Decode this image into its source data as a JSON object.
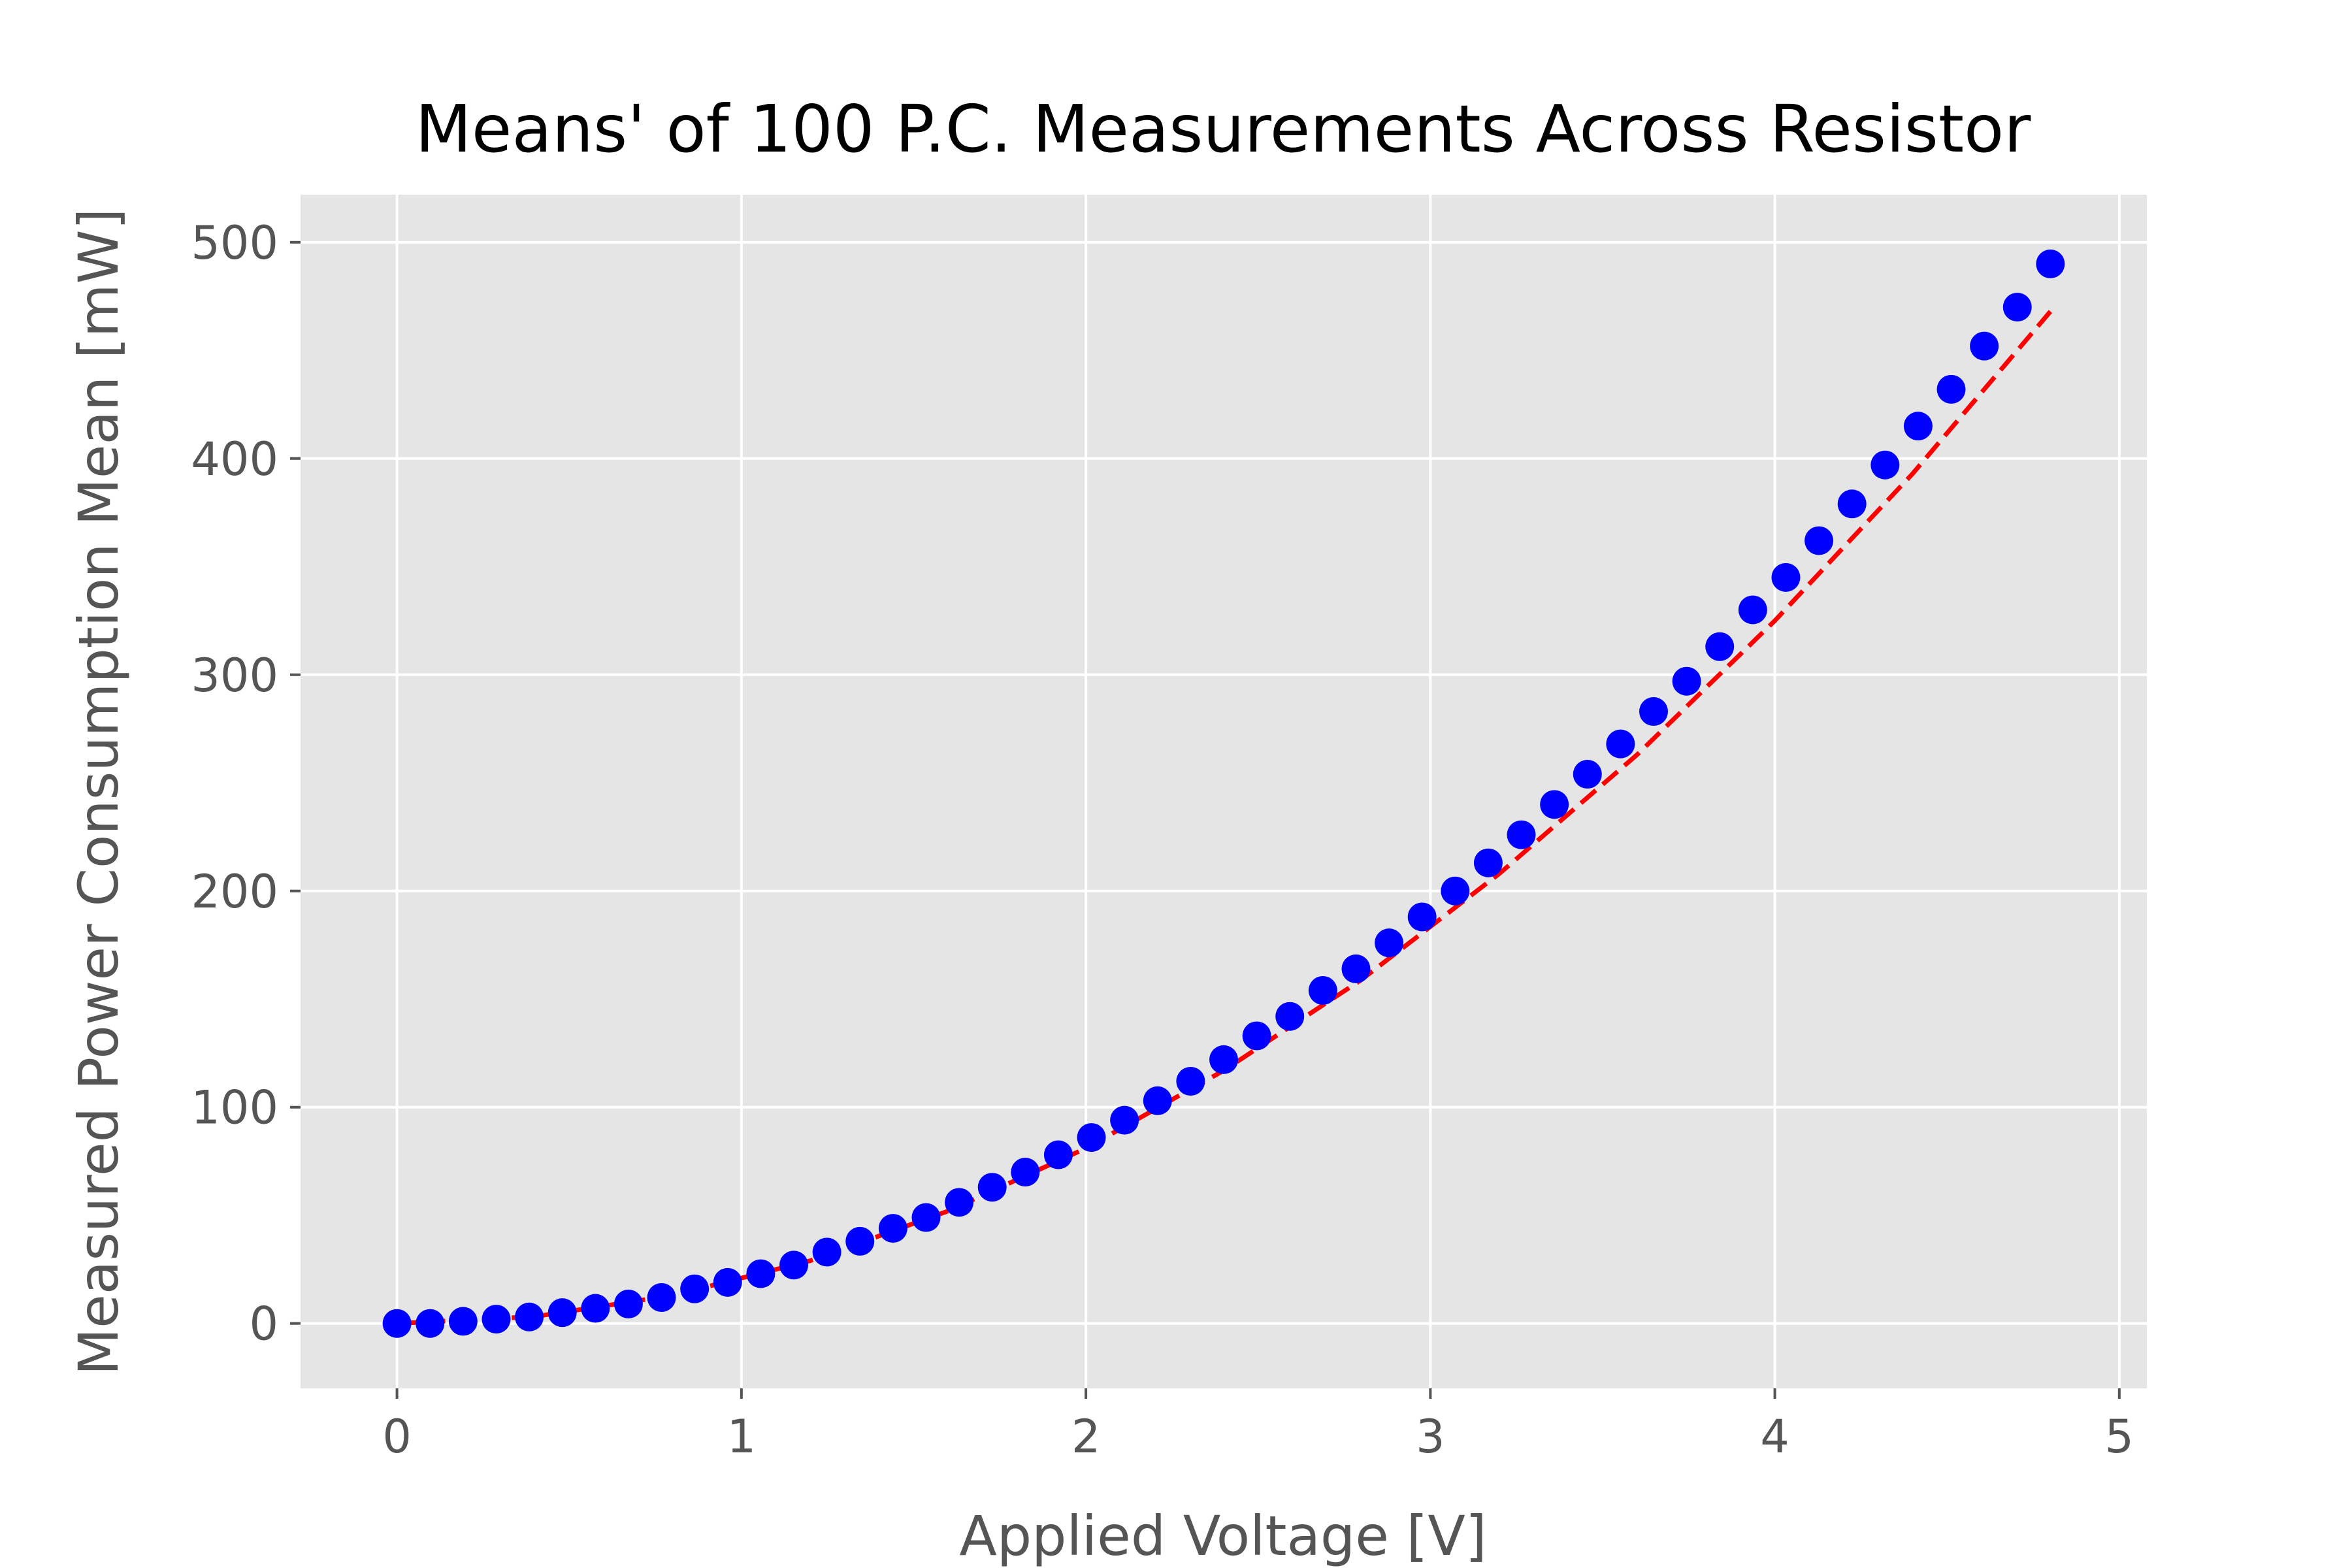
{
  "chart_data": {
    "type": "scatter",
    "title": "Means' of 100 P.C. Measurements Across Resistor",
    "xlabel": "Applied Voltage [V]",
    "ylabel": "Measured Power Consumption Mean [mW]",
    "xlim": [
      -0.28,
      5.08
    ],
    "ylim": [
      -30,
      522
    ],
    "xticks": [
      0,
      1,
      2,
      3,
      4,
      5
    ],
    "yticks": [
      0,
      100,
      200,
      300,
      400,
      500
    ],
    "grid": true,
    "legend": "none",
    "colors": {
      "background": "#e5e5e5",
      "points": "#0000ff",
      "fit": "#ff0000"
    },
    "series": [
      {
        "style": "points",
        "x": [
          0.0,
          0.096,
          0.192,
          0.288,
          0.384,
          0.48,
          0.576,
          0.672,
          0.768,
          0.864,
          0.96,
          1.056,
          1.152,
          1.248,
          1.344,
          1.44,
          1.536,
          1.632,
          1.728,
          1.824,
          1.92,
          2.016,
          2.112,
          2.208,
          2.304,
          2.4,
          2.496,
          2.592,
          2.688,
          2.784,
          2.88,
          2.976,
          3.072,
          3.168,
          3.264,
          3.36,
          3.456,
          3.552,
          3.648,
          3.744,
          3.84,
          3.936,
          4.032,
          4.128,
          4.224,
          4.32,
          4.416,
          4.512,
          4.608,
          4.704,
          4.8
        ],
        "y": [
          0,
          0,
          1,
          2,
          3,
          5,
          7,
          9,
          12,
          16,
          19,
          23,
          27,
          33,
          38,
          44,
          49,
          56,
          63,
          70,
          78,
          86,
          94,
          103,
          112,
          122,
          133,
          142,
          154,
          164,
          176,
          188,
          200,
          213,
          226,
          240,
          254,
          268,
          283,
          297,
          313,
          330,
          345,
          362,
          379,
          397,
          415,
          432,
          452,
          470,
          490
        ]
      },
      {
        "style": "dashed-line",
        "x": [
          0.0,
          0.4,
          0.8,
          1.2,
          1.6,
          2.0,
          2.4,
          2.8,
          3.2,
          3.6,
          4.0,
          4.4,
          4.8
        ],
        "y": [
          0,
          3.2,
          13,
          29,
          52,
          81,
          117,
          159,
          208,
          263,
          325,
          393,
          468
        ]
      }
    ]
  }
}
